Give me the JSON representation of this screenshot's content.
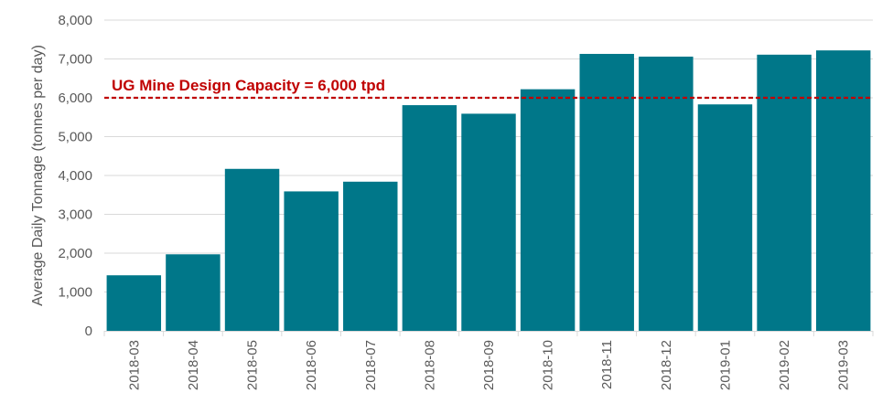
{
  "chart_data": {
    "type": "bar",
    "title": "",
    "xlabel": "",
    "ylabel": "Average Daily Tonnage (tonnes per day)",
    "categories": [
      "2018-03",
      "2018-04",
      "2018-05",
      "2018-06",
      "2018-07",
      "2018-08",
      "2018-09",
      "2018-10",
      "2018-11",
      "2018-12",
      "2019-01",
      "2019-02",
      "2019-03"
    ],
    "series": [
      {
        "values": [
          1430,
          1970,
          4170,
          3590,
          3840,
          5810,
          5590,
          6220,
          7130,
          7060,
          5830,
          7110,
          7220
        ],
        "color": "#007789"
      }
    ],
    "ylim": [
      0,
      8000
    ],
    "yticks": [
      0,
      1000,
      2000,
      3000,
      4000,
      5000,
      6000,
      7000,
      8000
    ],
    "ytick_labels": [
      "0",
      "1,000",
      "2,000",
      "3,000",
      "4,000",
      "5,000",
      "6,000",
      "7,000",
      "8,000"
    ],
    "grid": "horizontal",
    "reference_line": {
      "value": 6000,
      "label": "UG Mine Design Capacity = 6,000 tpd",
      "color": "#C00000",
      "style": "dashed"
    }
  }
}
